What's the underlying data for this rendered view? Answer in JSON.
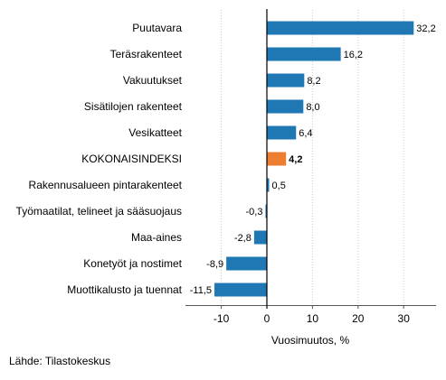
{
  "chart_data": {
    "type": "bar",
    "orientation": "horizontal",
    "categories": [
      "Puutavara",
      "Teräsrakenteet",
      "Vakuutukset",
      "Sisätilojen rakenteet",
      "Vesikatteet",
      "KOKONAISINDEKSI",
      "Rakennusalueen pintarakenteet",
      "Työmaatilat, telineet ja sääsuojaus",
      "Maa-aines",
      "Konetyöt ja nostimet",
      "Muottikalusto ja tuennat"
    ],
    "values": [
      32.2,
      16.2,
      8.2,
      8.0,
      6.4,
      4.2,
      0.5,
      -0.3,
      -2.8,
      -8.9,
      -11.5
    ],
    "value_labels": [
      "32,2",
      "16,2",
      "8,2",
      "8,0",
      "6,4",
      "4,2",
      "0,5",
      "-0,3",
      "-2,8",
      "-8,9",
      "-11,5"
    ],
    "highlight_index": 5,
    "xlabel": "Vuosimuutos, %",
    "xlim": [
      -17,
      37
    ],
    "xticks": [
      -10,
      0,
      10,
      20,
      30
    ],
    "xtick_labels": [
      "-10",
      "0",
      "10",
      "20",
      "30"
    ],
    "grid": "vertical dotted",
    "colors": {
      "bar": "#1f77b4",
      "highlight": "#ed7d31",
      "grid": "#c8c8c8",
      "zero_line": "#000000"
    }
  },
  "source_note": "Lähde: Tilastokeskus"
}
